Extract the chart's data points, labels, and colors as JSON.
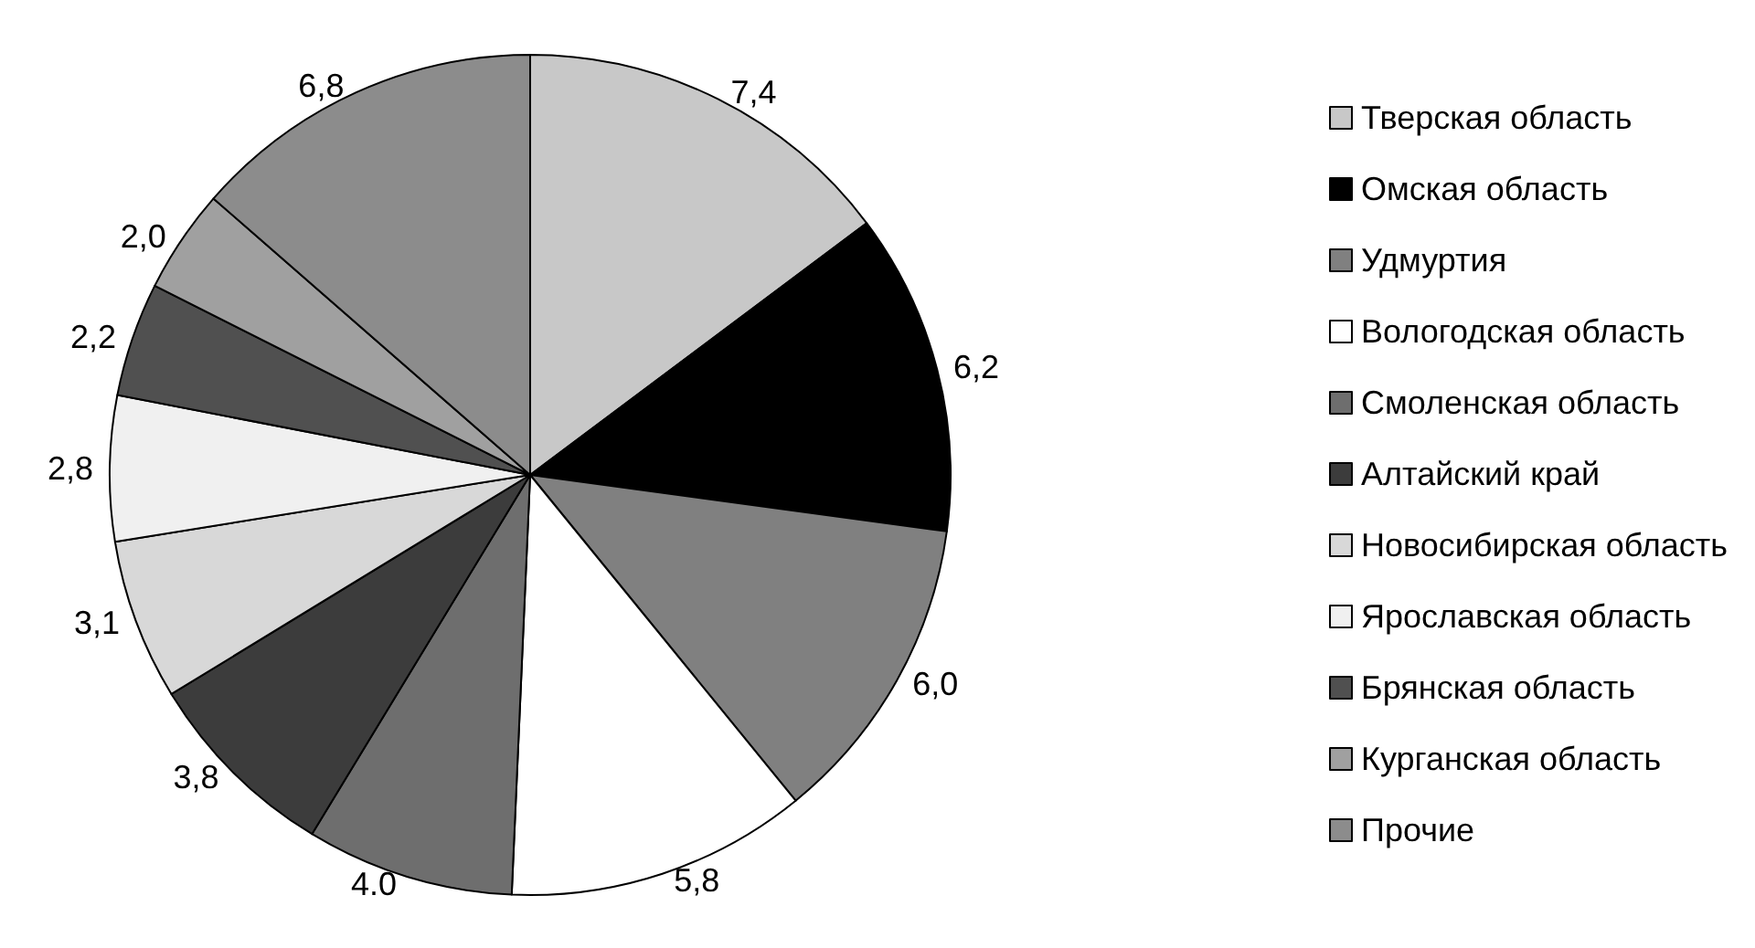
{
  "chart_data": {
    "type": "pie",
    "categories": [
      "Тверская область",
      "Омская область",
      "Удмуртия",
      "Вологодская область",
      "Смоленская область",
      "Алтайский край",
      "Новосибирская область",
      "Ярославская область",
      "Брянская область",
      "Курганская область",
      "Прочие"
    ],
    "values": [
      7.4,
      6.2,
      6.0,
      5.8,
      4.0,
      3.8,
      3.1,
      2.8,
      2.2,
      2.0,
      6.8
    ],
    "value_labels": [
      "7,4",
      "6,2",
      "6,0",
      "5,8",
      "4.0",
      "3,8",
      "3,1",
      "2,8",
      "2,2",
      "2,0",
      "6,8"
    ],
    "colors": [
      "#c8c8c8",
      "#000000",
      "#808080",
      "#ffffff",
      "#6e6e6e",
      "#3c3c3c",
      "#d8d8d8",
      "#f0f0f0",
      "#505050",
      "#a0a0a0",
      "#8c8c8c"
    ],
    "legend": "right"
  }
}
